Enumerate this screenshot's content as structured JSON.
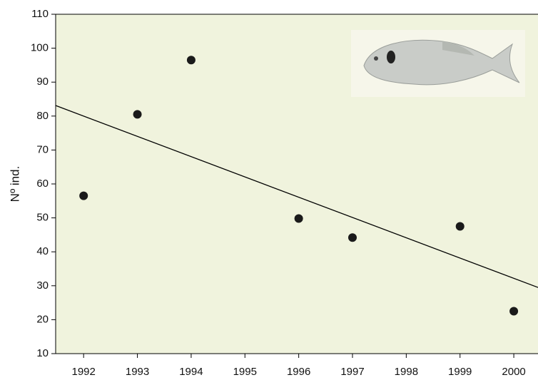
{
  "chart_data": {
    "type": "scatter",
    "y_label": "Nº ind.",
    "x": [
      1992,
      1993,
      1994,
      1996,
      1997,
      1999,
      2000
    ],
    "series": [
      {
        "values": [
          56.5,
          80.5,
          96.5,
          49.8,
          44.2,
          47.5,
          22.5
        ],
        "color": "#1a1a1a"
      }
    ],
    "trend": {
      "x": [
        1991.48,
        2000.45
      ],
      "values": [
        83.1,
        29.5
      ],
      "color": "#000000"
    },
    "xlim": [
      1991.48,
      2000.45
    ],
    "ylim": [
      10,
      110
    ],
    "xticks": [
      1992,
      1993,
      1994,
      1995,
      1996,
      1997,
      1998,
      1999,
      2000
    ],
    "yticks": [
      10,
      20,
      30,
      40,
      50,
      60,
      70,
      80,
      90,
      100,
      110
    ],
    "background": "#f0f3dd"
  }
}
